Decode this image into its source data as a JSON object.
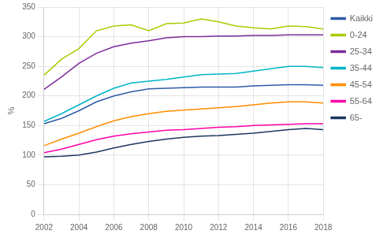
{
  "chart_data": {
    "type": "line",
    "ylabel": "%",
    "x": [
      2002,
      2003,
      2004,
      2005,
      2006,
      2007,
      2008,
      2009,
      2010,
      2011,
      2012,
      2013,
      2014,
      2015,
      2016,
      2017,
      2018
    ],
    "series": [
      {
        "name": "Kaikki",
        "color": "#2E5BA8",
        "values": [
          153,
          162,
          175,
          190,
          200,
          207,
          212,
          213,
          214,
          215,
          215,
          215,
          217,
          218,
          219,
          219,
          218
        ]
      },
      {
        "name": "0-24",
        "color": "#AACC00",
        "values": [
          235,
          262,
          280,
          310,
          318,
          320,
          310,
          322,
          323,
          330,
          325,
          318,
          315,
          313,
          318,
          317,
          313
        ]
      },
      {
        "name": "25-34",
        "color": "#7B2C9B",
        "values": [
          211,
          232,
          255,
          272,
          283,
          289,
          293,
          298,
          300,
          300,
          301,
          301,
          302,
          302,
          303,
          303,
          303
        ]
      },
      {
        "name": "35-44",
        "color": "#00B4C8",
        "values": [
          157,
          170,
          185,
          200,
          213,
          222,
          225,
          228,
          232,
          236,
          237,
          238,
          242,
          246,
          250,
          250,
          248
        ]
      },
      {
        "name": "45-54",
        "color": "#FF8C00",
        "values": [
          116,
          127,
          137,
          148,
          158,
          165,
          170,
          174,
          176,
          178,
          180,
          182,
          185,
          188,
          190,
          190,
          188
        ]
      },
      {
        "name": "55-64",
        "color": "#FF00AA",
        "values": [
          104,
          110,
          118,
          126,
          132,
          136,
          139,
          142,
          143,
          145,
          147,
          148,
          150,
          151,
          152,
          153,
          153
        ]
      },
      {
        "name": "65-",
        "color": "#1C3660",
        "values": [
          97,
          98,
          100,
          105,
          112,
          118,
          123,
          127,
          130,
          132,
          133,
          135,
          137,
          140,
          143,
          145,
          143
        ]
      }
    ],
    "xlim": [
      2002,
      2018
    ],
    "xticks": [
      2002,
      2004,
      2006,
      2008,
      2010,
      2012,
      2014,
      2016,
      2018
    ],
    "ylim": [
      0,
      350
    ],
    "yticks": [
      0,
      50,
      100,
      150,
      200,
      250,
      300,
      350
    ],
    "grid": true,
    "legend": "right"
  }
}
